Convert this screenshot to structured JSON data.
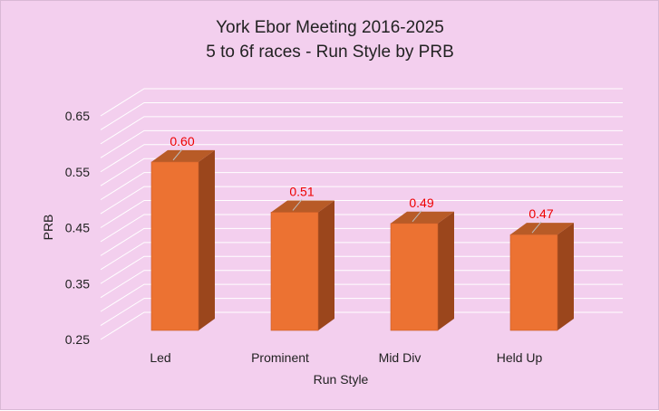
{
  "chart_data": {
    "type": "bar",
    "title_lines": [
      "York Ebor Meeting 2016-2025",
      "5 to 6f races - Run Style by PRB"
    ],
    "categories": [
      "Led",
      "Prominent",
      "Mid Div",
      "Held Up"
    ],
    "values": [
      0.6,
      0.51,
      0.49,
      0.47
    ],
    "data_labels": [
      "0.60",
      "0.51",
      "0.49",
      "0.47"
    ],
    "xlabel": "Run Style",
    "ylabel": "PRB",
    "ylim": [
      0.25,
      0.65
    ],
    "yticks": [
      "0.25",
      "0.35",
      "0.45",
      "0.55",
      "0.65"
    ],
    "grid": true,
    "three_d": true,
    "colors": {
      "background": "#f3cfee",
      "bar_front": "#ec7232",
      "bar_side": "#9b461c",
      "bar_top": "#b85b27",
      "gridline": "#ffffff",
      "data_label": "#ee0000"
    }
  }
}
